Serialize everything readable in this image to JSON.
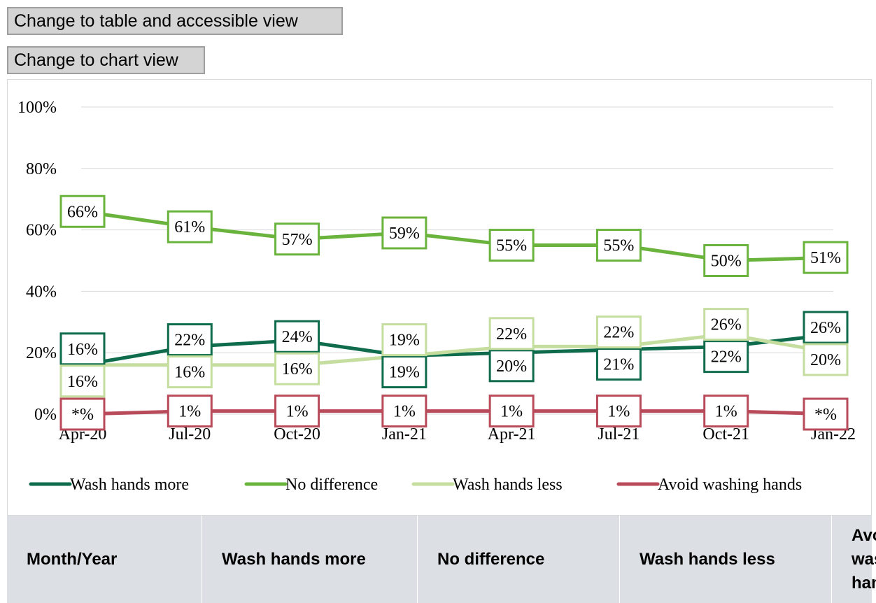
{
  "buttons": {
    "table_view": "Change to table and accessible view",
    "chart_view": "Change to chart view"
  },
  "chart_data": {
    "type": "line",
    "categories": [
      "Apr-20",
      "Jul-20",
      "Oct-20",
      "Jan-21",
      "Apr-21",
      "Jul-21",
      "Oct-21",
      "Jan-22"
    ],
    "yticks": [
      "0%",
      "20%",
      "40%",
      "60%",
      "80%",
      "100%"
    ],
    "ylim": [
      0,
      100
    ],
    "grid": true,
    "legend_position": "bottom",
    "series": [
      {
        "name": "Wash hands more",
        "color": "#0e6b4c",
        "values": [
          16,
          22,
          24,
          19,
          20,
          21,
          22,
          26
        ],
        "labels": [
          "16%",
          "22%",
          "24%",
          "19%",
          "20%",
          "21%",
          "22%",
          "26%"
        ]
      },
      {
        "name": "No difference",
        "color": "#6ab43e",
        "values": [
          66,
          61,
          57,
          59,
          55,
          55,
          50,
          51
        ],
        "labels": [
          "66%",
          "61%",
          "57%",
          "59%",
          "55%",
          "55%",
          "50%",
          "51%"
        ]
      },
      {
        "name": "Wash hands less",
        "color": "#c5dea0",
        "values": [
          16,
          16,
          16,
          19,
          22,
          22,
          26,
          20
        ],
        "labels": [
          "16%",
          "16%",
          "16%",
          "19%",
          "22%",
          "22%",
          "26%",
          "20%"
        ]
      },
      {
        "name": "Avoid washing hands",
        "color": "#b84a5a",
        "values": [
          0,
          1,
          1,
          1,
          1,
          1,
          1,
          0
        ],
        "labels": [
          "*%",
          "1%",
          "1%",
          "1%",
          "1%",
          "1%",
          "1%",
          "*%"
        ]
      }
    ]
  },
  "table": {
    "headers": [
      "Month/Year",
      "Wash hands more",
      "No difference",
      "Wash hands less",
      "Avoid washing hands"
    ]
  }
}
